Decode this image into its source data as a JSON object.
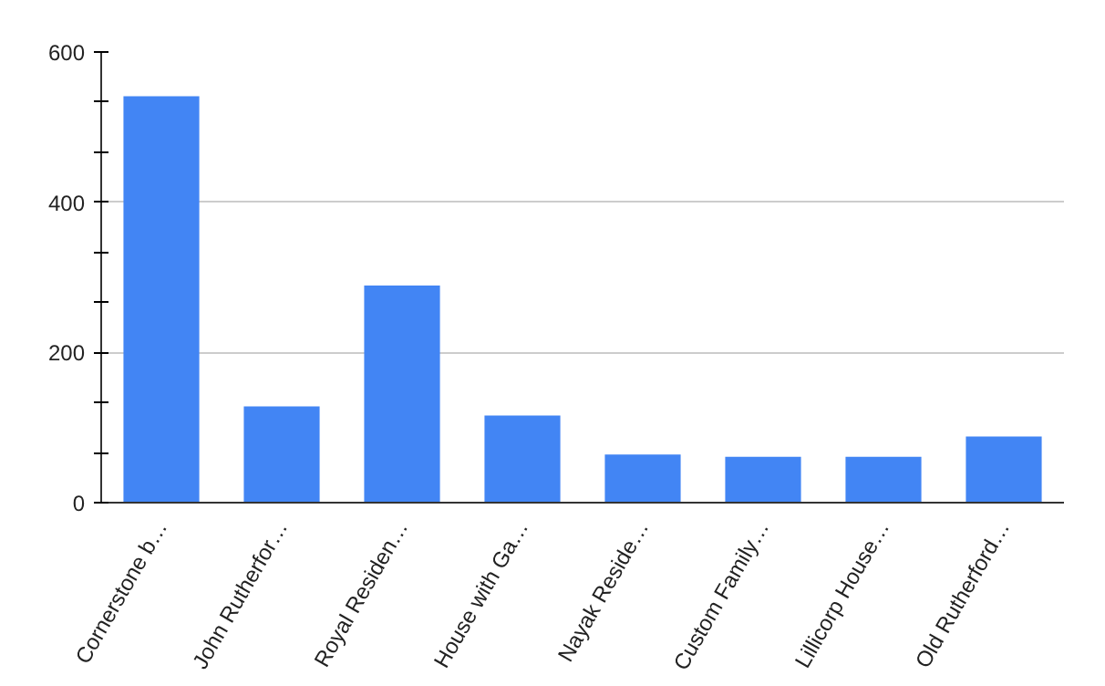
{
  "chart_data": {
    "type": "bar",
    "categories": [
      "Cornerstone b…",
      "John Rutherfor…",
      "Royal Residen…",
      "House with Ga…",
      "Nayak Reside…",
      "Custom Family…",
      "Lillicorp House…",
      "Old Rutherford…"
    ],
    "values": [
      541,
      128,
      289,
      116,
      64,
      61,
      61,
      88
    ],
    "color": "#4285f4",
    "ylim": [
      0,
      600
    ],
    "yticks": [
      0,
      {
        "value": 66.67,
        "label": null
      },
      {
        "value": 133.33,
        "label": null
      },
      200,
      {
        "value": 266.67,
        "label": null
      },
      {
        "value": 333.33,
        "label": null
      },
      400,
      {
        "value": 466.67,
        "label": null
      },
      {
        "value": 533.33,
        "label": null
      },
      600
    ],
    "grid": "y"
  }
}
